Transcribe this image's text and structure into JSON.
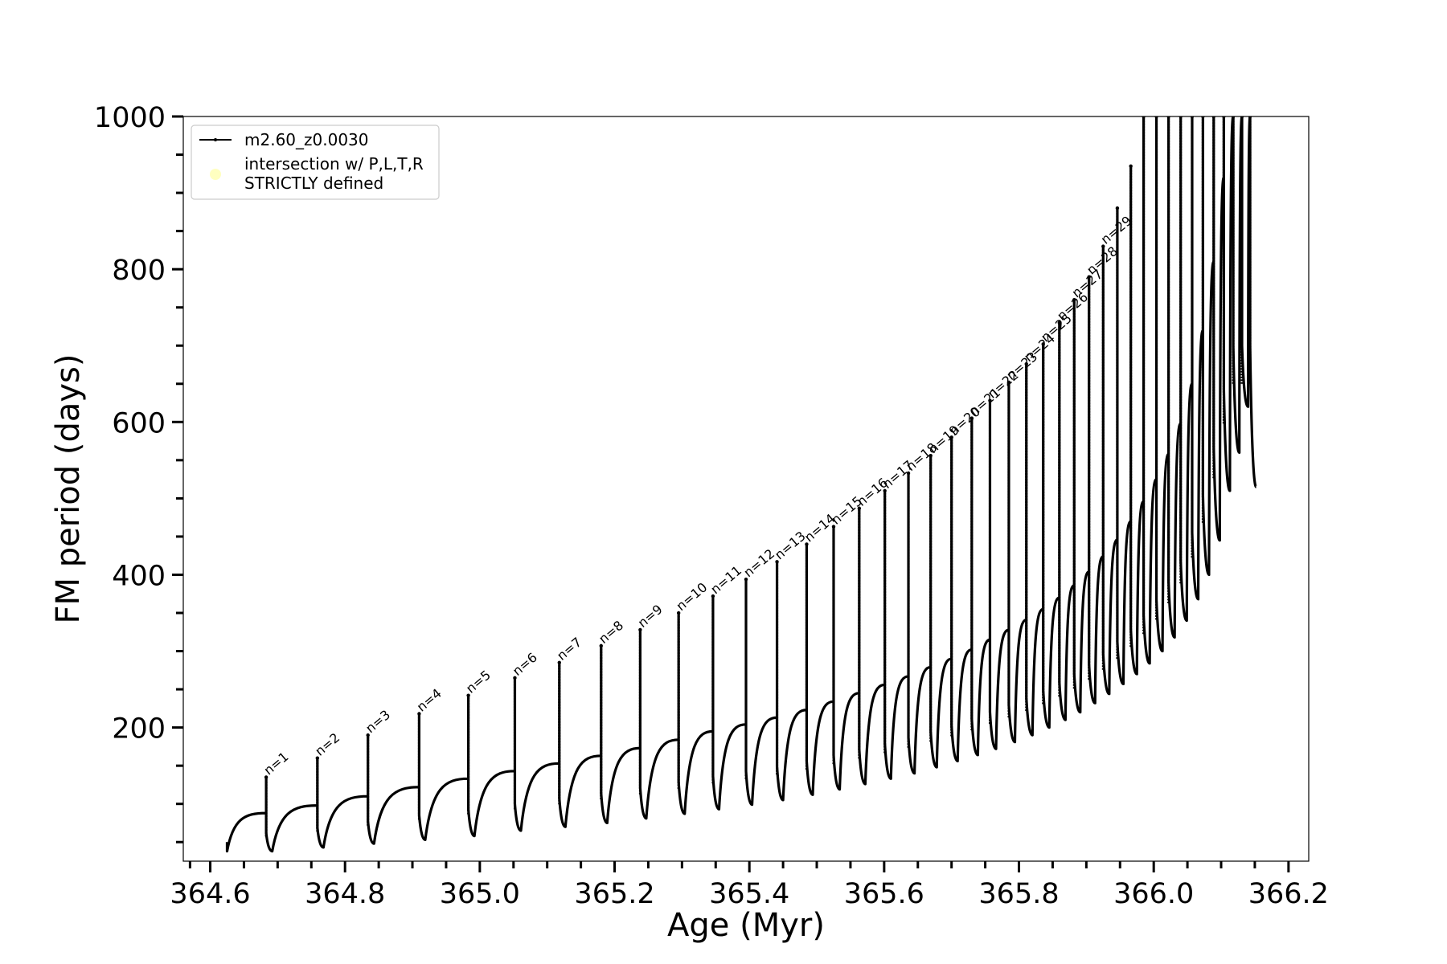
{
  "chart_data": {
    "type": "line",
    "xlabel": "Age (Myr)",
    "ylabel": "FM period (days)",
    "xlim": [
      364.56,
      366.23
    ],
    "ylim": [
      25,
      1000
    ],
    "x_ticks": [
      364.6,
      364.8,
      365.0,
      365.2,
      365.4,
      365.6,
      365.8,
      366.0,
      366.2
    ],
    "x_tick_labels": [
      "364.6",
      "364.8",
      "365.0",
      "365.2",
      "365.4",
      "365.6",
      "365.8",
      "366.0",
      "366.2"
    ],
    "y_ticks": [
      200,
      400,
      600,
      800,
      1000
    ],
    "y_tick_labels": [
      "200",
      "400",
      "600",
      "800",
      "1000"
    ],
    "legend": {
      "placement": "top-left",
      "entries": [
        {
          "label": "m2.60_z0.0030",
          "color": "#000000",
          "marker": "line-with-dot"
        },
        {
          "label_lines": [
            "intersection w/ P,L,T,R",
            "STRICTLY defined"
          ],
          "color": "#ffffc0",
          "marker": "circle"
        }
      ]
    },
    "series": [
      {
        "name": "m2.60_z0.0030",
        "color": "#000000",
        "start": {
          "age": 364.625,
          "period": 38
        },
        "pulses": [
          {
            "n": "n=1",
            "age": 364.683,
            "top": 135,
            "base": 88,
            "dip": 38
          },
          {
            "n": "n=2",
            "age": 364.759,
            "top": 160,
            "base": 98,
            "dip": 43
          },
          {
            "n": "n=3",
            "age": 364.834,
            "top": 190,
            "base": 110,
            "dip": 48
          },
          {
            "n": "n=4",
            "age": 364.91,
            "top": 218,
            "base": 122,
            "dip": 53
          },
          {
            "n": "n=5",
            "age": 364.983,
            "top": 242,
            "base": 133,
            "dip": 58
          },
          {
            "n": "n=6",
            "age": 365.052,
            "top": 265,
            "base": 143,
            "dip": 65
          },
          {
            "n": "n=7",
            "age": 365.118,
            "top": 285,
            "base": 153,
            "dip": 70
          },
          {
            "n": "n=8",
            "age": 365.18,
            "top": 307,
            "base": 163,
            "dip": 75
          },
          {
            "n": "n=9",
            "age": 365.238,
            "top": 328,
            "base": 173,
            "dip": 81
          },
          {
            "n": "n=10",
            "age": 365.295,
            "top": 350,
            "base": 184,
            "dip": 87
          },
          {
            "n": "n=11",
            "age": 365.346,
            "top": 372,
            "base": 195,
            "dip": 93
          },
          {
            "n": "n=12",
            "age": 365.395,
            "top": 394,
            "base": 204,
            "dip": 99
          },
          {
            "n": "n=13",
            "age": 365.441,
            "top": 417,
            "base": 213,
            "dip": 105
          },
          {
            "n": "n=14",
            "age": 365.485,
            "top": 440,
            "base": 223,
            "dip": 112
          },
          {
            "n": "n=15",
            "age": 365.525,
            "top": 463,
            "base": 234,
            "dip": 119
          },
          {
            "n": "n=16",
            "age": 365.563,
            "top": 487,
            "base": 245,
            "dip": 126
          },
          {
            "n": "n=17",
            "age": 365.601,
            "top": 510,
            "base": 256,
            "dip": 133
          },
          {
            "n": "n=18",
            "age": 365.636,
            "top": 533,
            "base": 267,
            "dip": 140
          },
          {
            "n": "n=19",
            "age": 365.669,
            "top": 556,
            "base": 279,
            "dip": 148
          },
          {
            "n": "n=20",
            "age": 365.7,
            "top": 580,
            "base": 290,
            "dip": 156
          },
          {
            "n": "n=21",
            "age": 365.73,
            "top": 605,
            "base": 302,
            "dip": 164
          },
          {
            "n": "n=22",
            "age": 365.757,
            "top": 628,
            "base": 315,
            "dip": 172
          },
          {
            "n": "n=23",
            "age": 365.785,
            "top": 652,
            "base": 328,
            "dip": 181
          },
          {
            "n": "n=24",
            "age": 365.811,
            "top": 676,
            "base": 341,
            "dip": 190
          },
          {
            "n": "n=25",
            "age": 365.836,
            "top": 702,
            "base": 355,
            "dip": 200
          },
          {
            "n": "n=26",
            "age": 365.86,
            "top": 730,
            "base": 370,
            "dip": 210
          },
          {
            "n": "n=27",
            "age": 365.882,
            "top": 760,
            "base": 386,
            "dip": 220
          },
          {
            "n": "n=28",
            "age": 365.904,
            "top": 790,
            "base": 404,
            "dip": 232
          },
          {
            "n": "n=29",
            "age": 365.925,
            "top": 830,
            "base": 424,
            "dip": 244
          },
          {
            "n": "",
            "age": 365.946,
            "top": 880,
            "base": 446,
            "dip": 257
          },
          {
            "n": "",
            "age": 365.966,
            "top": 935,
            "base": 470,
            "dip": 270
          },
          {
            "n": "",
            "age": 365.985,
            "top": 1000,
            "base": 496,
            "dip": 284
          },
          {
            "n": "",
            "age": 366.004,
            "top": 1000,
            "base": 525,
            "dip": 300
          },
          {
            "n": "",
            "age": 366.022,
            "top": 1000,
            "base": 558,
            "dip": 318
          },
          {
            "n": "",
            "age": 366.04,
            "top": 1000,
            "base": 598,
            "dip": 340
          },
          {
            "n": "",
            "age": 366.057,
            "top": 1000,
            "base": 650,
            "dip": 368
          },
          {
            "n": "",
            "age": 366.073,
            "top": 1000,
            "base": 720,
            "dip": 400
          },
          {
            "n": "",
            "age": 366.089,
            "top": 1000,
            "base": 810,
            "dip": 445
          },
          {
            "n": "",
            "age": 366.104,
            "top": 1000,
            "base": 920,
            "dip": 510
          },
          {
            "n": "",
            "age": 366.118,
            "top": 1000,
            "base": 1000,
            "dip": 560
          },
          {
            "n": "",
            "age": 366.131,
            "top": 1000,
            "base": 1000,
            "dip": 620
          },
          {
            "n": "",
            "age": 366.143,
            "top": 1000,
            "base": 1000,
            "dip": 515
          }
        ]
      }
    ]
  }
}
